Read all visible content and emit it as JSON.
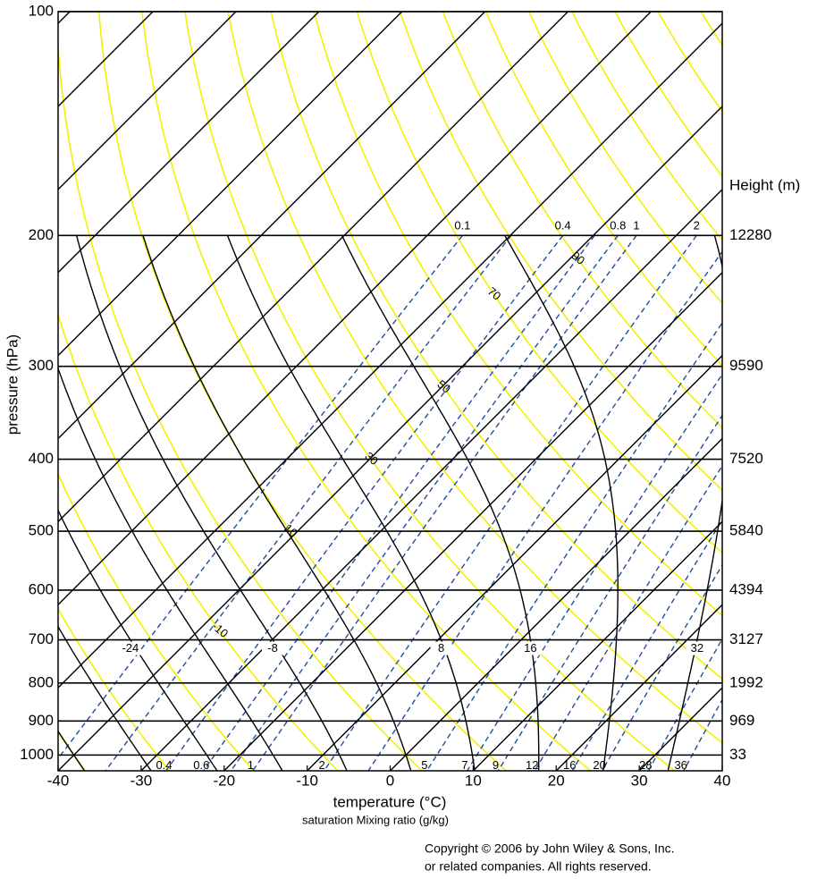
{
  "chart_data": {
    "type": "skewT",
    "x_label": "temperature (°C)",
    "x_sublabel": "saturation Mixing ratio (g/kg)",
    "y_label": "pressure  (hPa)",
    "xlim": [
      -40,
      40
    ],
    "xticks": [
      -40,
      -30,
      -20,
      -10,
      0,
      10,
      20,
      30,
      40
    ],
    "ylim": [
      1050,
      100
    ],
    "yticks": [
      100,
      200,
      300,
      400,
      500,
      600,
      700,
      800,
      900,
      1000
    ],
    "log_y": true,
    "height_axis": {
      "title": "Height (m)",
      "levels": [
        200,
        300,
        400,
        500,
        600,
        700,
        800,
        900,
        1000
      ],
      "heights": [
        12280,
        9590,
        7520,
        5840,
        4394,
        3127,
        1992,
        969,
        33
      ]
    },
    "isotherms": [
      -140,
      -130,
      -120,
      -110,
      -100,
      -90,
      -80,
      -70,
      -60,
      -50,
      -40,
      -30,
      -20,
      -10,
      0,
      10,
      20,
      30,
      40
    ],
    "isotherm_color": "#000000",
    "dry_adiabats": [
      {
        "theta": -40,
        "labeled": false
      },
      {
        "theta": -30,
        "labeled": false
      },
      {
        "theta": -20,
        "labeled": false
      },
      {
        "theta": -10,
        "labeled": true
      },
      {
        "theta": 0,
        "labeled": false
      },
      {
        "theta": 10,
        "labeled": true
      },
      {
        "theta": 20,
        "labeled": false
      },
      {
        "theta": 30,
        "labeled": true
      },
      {
        "theta": 40,
        "labeled": false
      },
      {
        "theta": 50,
        "labeled": true
      },
      {
        "theta": 60,
        "labeled": false
      },
      {
        "theta": 70,
        "labeled": true
      },
      {
        "theta": 80,
        "labeled": false
      },
      {
        "theta": 90,
        "labeled": true
      },
      {
        "theta": 100,
        "labeled": false
      },
      {
        "theta": 110,
        "labeled": false
      },
      {
        "theta": 120,
        "labeled": false
      },
      {
        "theta": 130,
        "labeled": false
      },
      {
        "theta": 140,
        "labeled": false
      },
      {
        "theta": 150,
        "labeled": false
      },
      {
        "theta": 160,
        "labeled": false
      }
    ],
    "dry_adiabat_color": "#f5f000",
    "moist_adiabats": [
      {
        "theta_w": -40,
        "labeled": false
      },
      {
        "theta_w": -32,
        "labeled": false
      },
      {
        "theta_w": -24,
        "labeled": true
      },
      {
        "theta_w": -16,
        "labeled": false
      },
      {
        "theta_w": -8,
        "labeled": true
      },
      {
        "theta_w": 0,
        "labeled": false
      },
      {
        "theta_w": 8,
        "labeled": true
      },
      {
        "theta_w": 16,
        "labeled": true
      },
      {
        "theta_w": 24,
        "labeled": false
      },
      {
        "theta_w": 32,
        "labeled": true
      },
      {
        "theta_w": 40,
        "labeled": false
      }
    ],
    "moist_adiabat_color": "#000000",
    "mixing_ratios": [
      {
        "w": 0.1,
        "top_label": true,
        "bottom_label": false
      },
      {
        "w": 0.2,
        "top_label": false,
        "bottom_label": false
      },
      {
        "w": 0.4,
        "top_label": true,
        "bottom_label": true
      },
      {
        "w": 0.6,
        "top_label": false,
        "bottom_label": true
      },
      {
        "w": 0.8,
        "top_label": true,
        "bottom_label": false
      },
      {
        "w": 1,
        "top_label": true,
        "bottom_label": true
      },
      {
        "w": 2,
        "top_label": true,
        "bottom_label": true
      },
      {
        "w": 3,
        "top_label": false,
        "bottom_label": false
      },
      {
        "w": 5,
        "top_label": false,
        "bottom_label": true
      },
      {
        "w": 7,
        "top_label": false,
        "bottom_label": true
      },
      {
        "w": 9,
        "top_label": false,
        "bottom_label": true
      },
      {
        "w": 12,
        "top_label": false,
        "bottom_label": true
      },
      {
        "w": 16,
        "top_label": false,
        "bottom_label": true
      },
      {
        "w": 20,
        "top_label": false,
        "bottom_label": true
      },
      {
        "w": 28,
        "top_label": false,
        "bottom_label": true
      },
      {
        "w": 36,
        "top_label": false,
        "bottom_label": true
      }
    ],
    "mixing_ratio_color": "#1f4e9c",
    "grid": true,
    "copyright": [
      "Copyright © 2006 by John Wiley & Sons, Inc.",
      "or related companies. All rights reserved."
    ]
  }
}
